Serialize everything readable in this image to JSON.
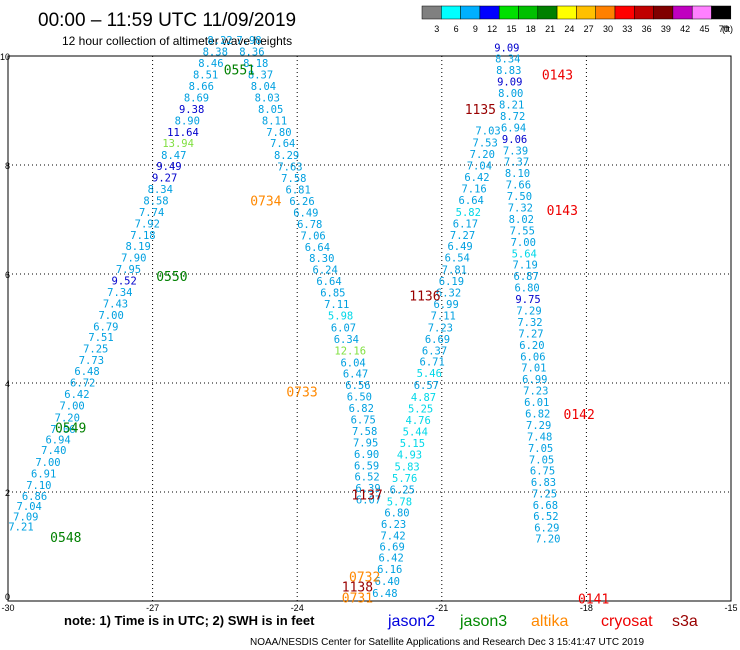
{
  "header": {
    "title": "00:00 – 11:59 UTC 11/09/2019",
    "subtitle": "12 hour collection of altimeter wave heights"
  },
  "colorbar": {
    "labels": [
      "3",
      "6",
      "9",
      "12",
      "15",
      "18",
      "21",
      "24",
      "27",
      "30",
      "33",
      "36",
      "39",
      "42",
      "45",
      "70"
    ],
    "unit": "(ft)",
    "colors": [
      "#808080",
      "#00ffff",
      "#00b0ff",
      "#0000ff",
      "#00e000",
      "#00c000",
      "#008000",
      "#ffff00",
      "#ffc000",
      "#ff8000",
      "#ff0000",
      "#c00000",
      "#800000",
      "#c000c0",
      "#ff80ff",
      "#000000"
    ]
  },
  "footer": {
    "note": "note:  1) Time is in UTC;  2) SWH is in feet",
    "legend": [
      {
        "name": "jason2",
        "color": "#0000dd"
      },
      {
        "name": "jason3",
        "color": "#008800"
      },
      {
        "name": "altika",
        "color": "#ff8800"
      },
      {
        "name": "cryosat",
        "color": "#ee0000"
      },
      {
        "name": "s3a",
        "color": "#990000"
      }
    ],
    "credit": "NOAA/NESDIS Center for Satellite Applications and Research    Dec  3 15:41:47 UTC 2019"
  },
  "chart_data": {
    "type": "scatter",
    "xlabel": "",
    "ylabel": "",
    "xlim": [
      -30,
      -15
    ],
    "ylim": [
      0,
      10
    ],
    "xticks": [
      -30,
      -27,
      -24,
      -21,
      -18,
      -15
    ],
    "yticks": [
      0,
      2,
      4,
      6,
      8,
      10
    ],
    "grid": true,
    "tracks": [
      {
        "color": "#00a0e0",
        "points": [
          [
            -29.73,
            1.37,
            "7.21"
          ],
          [
            -29.63,
            1.55,
            "7.09"
          ],
          [
            -29.56,
            1.74,
            "7.04"
          ],
          [
            -29.45,
            1.93,
            "6.86"
          ],
          [
            -29.36,
            2.13,
            "7.10"
          ],
          [
            -29.26,
            2.34,
            "6.91"
          ],
          [
            -29.17,
            2.55,
            "7.00"
          ],
          [
            -29.05,
            2.77,
            "7.40"
          ],
          [
            -28.96,
            2.96,
            "6.94"
          ],
          [
            -28.86,
            3.16,
            "7.06"
          ],
          [
            -28.77,
            3.37,
            "7.20"
          ],
          [
            -28.67,
            3.59,
            "7.00"
          ],
          [
            -28.57,
            3.8,
            "6.42"
          ],
          [
            -28.45,
            4.01,
            "6.72"
          ],
          [
            -28.36,
            4.22,
            "6.48"
          ],
          [
            -28.27,
            4.42,
            "7.73"
          ],
          [
            -28.18,
            4.63,
            "7.25"
          ],
          [
            -28.07,
            4.84,
            "7.51"
          ],
          [
            -27.97,
            5.04,
            "6.79"
          ],
          [
            -27.86,
            5.25,
            "7.00"
          ],
          [
            -27.77,
            5.46,
            "7.43"
          ],
          [
            -27.68,
            5.67,
            "7.34"
          ],
          [
            -27.59,
            5.88,
            "9.52"
          ],
          [
            -27.5,
            6.09,
            "7.95"
          ],
          [
            -27.39,
            6.3,
            "7.90"
          ],
          [
            -27.3,
            6.51,
            "8.19"
          ],
          [
            -27.2,
            6.72,
            "7.18"
          ],
          [
            -27.11,
            6.93,
            "7.92"
          ],
          [
            -27.02,
            7.14,
            "7.74"
          ],
          [
            -26.93,
            7.35,
            "8.58"
          ],
          [
            -26.84,
            7.56,
            "8.34"
          ],
          [
            -26.75,
            7.77,
            "9.27"
          ],
          [
            -26.66,
            7.98,
            "9.49"
          ],
          [
            -26.56,
            8.18,
            "8.47"
          ],
          [
            -26.47,
            8.4,
            "13.94"
          ],
          [
            -26.37,
            8.61,
            "11.64"
          ],
          [
            -26.28,
            8.82,
            "8.90"
          ],
          [
            -26.19,
            9.03,
            "9.38"
          ],
          [
            -26.09,
            9.24,
            "8.69"
          ],
          [
            -25.99,
            9.45,
            "8.66"
          ],
          [
            -25.9,
            9.66,
            "8.51"
          ],
          [
            -25.79,
            9.87,
            "8.46"
          ],
          [
            -25.7,
            10.08,
            "8.38"
          ],
          [
            -25.6,
            10.29,
            "8.22"
          ]
        ]
      },
      {
        "color": "#00a0e0",
        "points": [
          [
            -25.0,
            10.29,
            "7.98"
          ],
          [
            -24.94,
            10.08,
            "8.36"
          ],
          [
            -24.86,
            9.87,
            "8.18"
          ],
          [
            -24.76,
            9.66,
            "8.37"
          ],
          [
            -24.7,
            9.45,
            "8.04"
          ],
          [
            -24.62,
            9.24,
            "8.03"
          ],
          [
            -24.55,
            9.03,
            "8.05"
          ],
          [
            -24.47,
            8.82,
            "8.11"
          ],
          [
            -24.38,
            8.61,
            "7.80"
          ],
          [
            -24.3,
            8.4,
            "7.64"
          ],
          [
            -24.22,
            8.18,
            "8.29"
          ],
          [
            -24.15,
            7.97,
            "7.63"
          ],
          [
            -24.07,
            7.76,
            "7.58"
          ],
          [
            -23.98,
            7.55,
            "6.81"
          ],
          [
            -23.9,
            7.34,
            "6.26"
          ],
          [
            -23.82,
            7.13,
            "6.49"
          ],
          [
            -23.74,
            6.92,
            "6.78"
          ],
          [
            -23.67,
            6.71,
            "7.06"
          ],
          [
            -23.58,
            6.5,
            "6.64"
          ],
          [
            -23.49,
            6.29,
            "8.30"
          ],
          [
            -23.42,
            6.08,
            "6.24"
          ],
          [
            -23.34,
            5.87,
            "6.64"
          ],
          [
            -23.26,
            5.66,
            "6.85"
          ],
          [
            -23.18,
            5.45,
            "7.11"
          ],
          [
            -23.1,
            5.24,
            "5.98"
          ],
          [
            -23.04,
            5.02,
            "6.07"
          ],
          [
            -22.98,
            4.81,
            "6.34"
          ],
          [
            -22.9,
            4.6,
            "12.16"
          ],
          [
            -22.84,
            4.38,
            "6.04"
          ],
          [
            -22.79,
            4.17,
            "6.47"
          ],
          [
            -22.74,
            3.96,
            "6.56"
          ],
          [
            -22.71,
            3.75,
            "6.50"
          ],
          [
            -22.67,
            3.54,
            "6.82"
          ],
          [
            -22.63,
            3.33,
            "6.75"
          ],
          [
            -22.6,
            3.12,
            "7.58"
          ],
          [
            -22.58,
            2.91,
            "7.95"
          ],
          [
            -22.56,
            2.7,
            "6.90"
          ],
          [
            -22.56,
            2.49,
            "6.59"
          ],
          [
            -22.55,
            2.28,
            "6.52"
          ],
          [
            -22.53,
            2.07,
            "6.39"
          ],
          [
            -22.52,
            1.86,
            "6.07"
          ]
        ]
      },
      {
        "color": "#00a0e0",
        "points": [
          [
            -22.18,
            0.15,
            "6.48"
          ],
          [
            -22.13,
            0.37,
            "6.40"
          ],
          [
            -22.08,
            0.59,
            "6.16"
          ],
          [
            -22.05,
            0.8,
            "6.42"
          ],
          [
            -22.03,
            1.0,
            "6.69"
          ],
          [
            -22.01,
            1.2,
            "7.42"
          ],
          [
            -22.0,
            1.41,
            "6.23"
          ],
          [
            -21.93,
            1.62,
            "6.80"
          ],
          [
            -21.88,
            1.83,
            "5.78"
          ],
          [
            -21.82,
            2.05,
            "6.25"
          ],
          [
            -21.77,
            2.26,
            "5.76"
          ],
          [
            -21.72,
            2.47,
            "5.83"
          ],
          [
            -21.67,
            2.69,
            "4.93"
          ],
          [
            -21.61,
            2.9,
            "5.15"
          ],
          [
            -21.55,
            3.11,
            "5.44"
          ],
          [
            -21.49,
            3.32,
            "4.76"
          ],
          [
            -21.44,
            3.53,
            "5.25"
          ],
          [
            -21.38,
            3.74,
            "4.87"
          ],
          [
            -21.32,
            3.96,
            "6.57"
          ],
          [
            -21.26,
            4.18,
            "5.46"
          ],
          [
            -21.2,
            4.39,
            "6.71"
          ],
          [
            -21.15,
            4.6,
            "6.37"
          ],
          [
            -21.09,
            4.81,
            "6.69"
          ],
          [
            -21.03,
            5.02,
            "7.23"
          ],
          [
            -20.97,
            5.24,
            "7.11"
          ],
          [
            -20.91,
            5.45,
            "6.99"
          ],
          [
            -20.86,
            5.66,
            "6.32"
          ],
          [
            -20.8,
            5.87,
            "6.19"
          ],
          [
            -20.74,
            6.08,
            "7.81"
          ],
          [
            -20.68,
            6.3,
            "6.54"
          ],
          [
            -20.62,
            6.51,
            "6.49"
          ],
          [
            -20.57,
            6.72,
            "7.27"
          ],
          [
            -20.51,
            6.93,
            "6.17"
          ],
          [
            -20.45,
            7.14,
            "5.82"
          ],
          [
            -20.39,
            7.36,
            "6.64"
          ],
          [
            -20.33,
            7.57,
            "7.16"
          ],
          [
            -20.27,
            7.78,
            "6.42"
          ],
          [
            -20.22,
            7.99,
            "7.04"
          ],
          [
            -20.16,
            8.2,
            "7.20"
          ],
          [
            -20.1,
            8.41,
            "7.53"
          ],
          [
            -20.04,
            8.63,
            "7.03"
          ]
        ]
      },
      {
        "color": "#00a0e0",
        "points": [
          [
            -18.8,
            1.15,
            "7.20"
          ],
          [
            -18.82,
            1.35,
            "6.29"
          ],
          [
            -18.84,
            1.56,
            "6.52"
          ],
          [
            -18.85,
            1.76,
            "6.68"
          ],
          [
            -18.87,
            1.97,
            "7.25"
          ],
          [
            -18.89,
            2.18,
            "6.83"
          ],
          [
            -18.91,
            2.39,
            "6.75"
          ],
          [
            -18.93,
            2.6,
            "7.05"
          ],
          [
            -18.95,
            2.81,
            "7.05"
          ],
          [
            -18.97,
            3.02,
            "7.48"
          ],
          [
            -18.99,
            3.23,
            "7.29"
          ],
          [
            -19.01,
            3.44,
            "6.82"
          ],
          [
            -19.03,
            3.65,
            "6.01"
          ],
          [
            -19.05,
            3.86,
            "7.23"
          ],
          [
            -19.07,
            4.07,
            "6.99"
          ],
          [
            -19.09,
            4.28,
            "7.01"
          ],
          [
            -19.11,
            4.49,
            "6.06"
          ],
          [
            -19.13,
            4.7,
            "6.20"
          ],
          [
            -19.15,
            4.91,
            "7.27"
          ],
          [
            -19.17,
            5.12,
            "7.32"
          ],
          [
            -19.19,
            5.33,
            "7.29"
          ],
          [
            -19.21,
            5.54,
            "9.75"
          ],
          [
            -19.23,
            5.75,
            "6.80"
          ],
          [
            -19.25,
            5.96,
            "6.87"
          ],
          [
            -19.27,
            6.17,
            "7.19"
          ],
          [
            -19.29,
            6.38,
            "5.64"
          ],
          [
            -19.31,
            6.59,
            "7.00"
          ],
          [
            -19.33,
            6.8,
            "7.55"
          ],
          [
            -19.35,
            7.01,
            "8.02"
          ],
          [
            -19.37,
            7.22,
            "7.32"
          ],
          [
            -19.39,
            7.43,
            "7.50"
          ],
          [
            -19.41,
            7.64,
            "7.66"
          ],
          [
            -19.43,
            7.85,
            "8.10"
          ],
          [
            -19.45,
            8.06,
            "7.37"
          ],
          [
            -19.47,
            8.27,
            "7.39"
          ],
          [
            -19.49,
            8.48,
            "9.06"
          ],
          [
            -19.51,
            8.69,
            "6.94"
          ],
          [
            -19.53,
            8.9,
            "8.72"
          ],
          [
            -19.55,
            9.11,
            "8.21"
          ],
          [
            -19.57,
            9.32,
            "8.00"
          ],
          [
            -19.59,
            9.53,
            "9.09"
          ],
          [
            -19.61,
            9.74,
            "8.83"
          ],
          [
            -19.63,
            9.95,
            "8.34"
          ],
          [
            -19.65,
            10.16,
            "9.09"
          ]
        ]
      }
    ],
    "pass_labels": [
      {
        "x": -28.8,
        "y": 1.17,
        "text": "0548",
        "color": "#008000"
      },
      {
        "x": -28.7,
        "y": 3.18,
        "text": "0549",
        "color": "#008000"
      },
      {
        "x": -26.6,
        "y": 5.96,
        "text": "0550",
        "color": "#008000"
      },
      {
        "x": -25.2,
        "y": 9.75,
        "text": "0551",
        "color": "#008000"
      },
      {
        "x": -24.65,
        "y": 7.35,
        "text": "0734",
        "color": "#ff8800"
      },
      {
        "x": -23.9,
        "y": 3.84,
        "text": "0733",
        "color": "#ff8800"
      },
      {
        "x": -22.6,
        "y": 0.45,
        "text": "0732",
        "color": "#ff8800"
      },
      {
        "x": -22.75,
        "y": 0.06,
        "text": "0731",
        "color": "#ff8800"
      },
      {
        "x": -22.75,
        "y": 0.27,
        "text": "1138",
        "color": "#990000"
      },
      {
        "x": -22.55,
        "y": 1.95,
        "text": "1137",
        "color": "#990000"
      },
      {
        "x": -21.35,
        "y": 5.61,
        "text": "1136",
        "color": "#990000"
      },
      {
        "x": -20.2,
        "y": 9.03,
        "text": "1135",
        "color": "#990000"
      },
      {
        "x": -18.6,
        "y": 9.66,
        "text": "0143",
        "color": "#ee0000"
      },
      {
        "x": -18.5,
        "y": 7.17,
        "text": "0143",
        "color": "#ee0000"
      },
      {
        "x": -18.15,
        "y": 3.43,
        "text": "0142",
        "color": "#ee0000"
      },
      {
        "x": -17.85,
        "y": 0.05,
        "text": "0141",
        "color": "#ee0000"
      }
    ]
  }
}
